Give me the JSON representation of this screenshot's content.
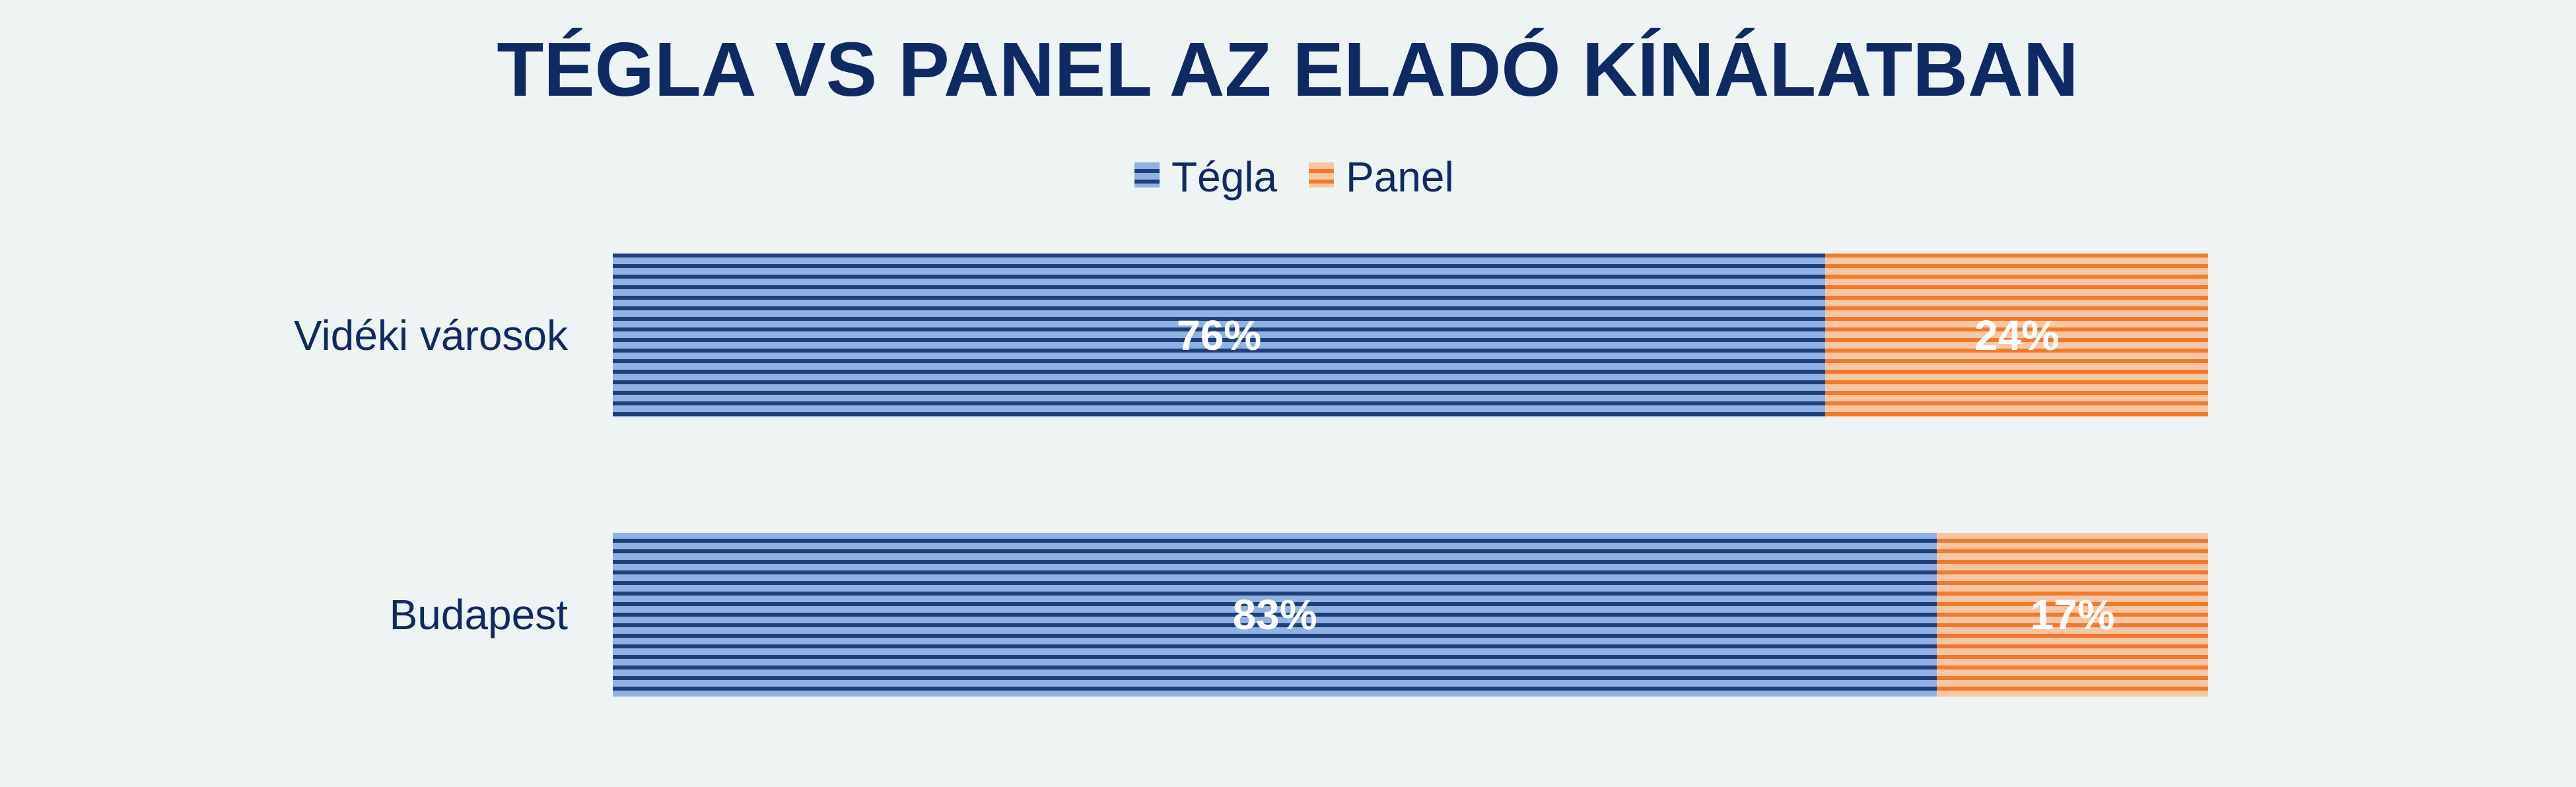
{
  "chart_data": {
    "type": "bar",
    "orientation": "horizontal",
    "stacked": true,
    "title": "TÉGLA VS PANEL AZ ELADÓ KÍNÁLATBAN",
    "categories": [
      "Vidéki városok",
      "Budapest"
    ],
    "series": [
      {
        "name": "Tégla",
        "values": [
          76,
          83
        ],
        "labels": [
          "76%",
          "83%"
        ],
        "color": "#8fb2e2",
        "stripe_color": "#1f3f7a"
      },
      {
        "name": "Panel",
        "values": [
          24,
          17
        ],
        "labels": [
          "24%",
          "17%"
        ],
        "color": "#f8c6a2",
        "stripe_color": "#ef7a2d"
      }
    ],
    "xlim": [
      0,
      100
    ],
    "grid": false,
    "legend_position": "top-center",
    "background": "#eef3f3",
    "text_color": "#0f2a63"
  }
}
